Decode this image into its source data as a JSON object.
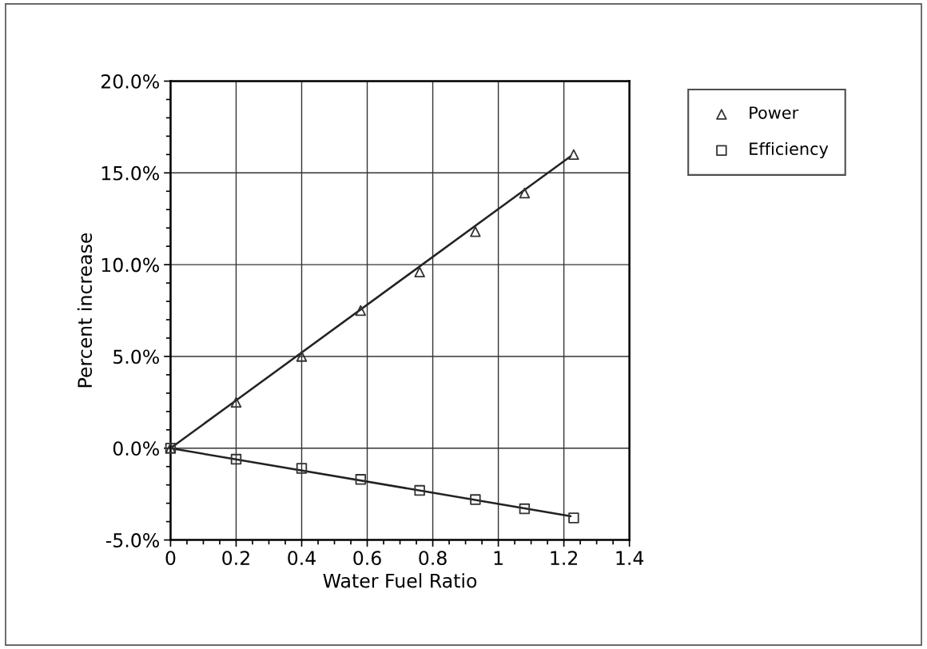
{
  "chart_data": {
    "type": "scatter",
    "xlabel": "Water Fuel Ratio",
    "ylabel": "Percent increase",
    "xlim": [
      0,
      1.4
    ],
    "xticks": [
      0,
      0.2,
      0.4,
      0.6,
      0.8,
      1,
      1.2,
      1.4
    ],
    "ylim": [
      -5,
      20
    ],
    "yticks": [
      {
        "value": -5,
        "label": "-5.0%"
      },
      {
        "value": 0,
        "label": "0.0%"
      },
      {
        "value": 5,
        "label": "5.0%"
      },
      {
        "value": 10,
        "label": "10.0%"
      },
      {
        "value": 15,
        "label": "15.0%"
      },
      {
        "value": 20,
        "label": "20.0%"
      }
    ],
    "grid": true,
    "legend": "top right",
    "series": [
      {
        "name": "Power",
        "color": "#333333",
        "marker": "triangle",
        "x": [
          0,
          0.2,
          0.4,
          0.58,
          0.76,
          0.93,
          1.08,
          1.23
        ],
        "values": [
          0,
          2.5,
          5.0,
          7.5,
          9.6,
          11.8,
          13.9,
          16.0
        ]
      },
      {
        "name": "Efficiency",
        "color": "#333333",
        "marker": "square",
        "x": [
          0,
          0.2,
          0.4,
          0.58,
          0.76,
          0.93,
          1.08,
          1.23
        ],
        "values": [
          0,
          -0.6,
          -1.1,
          -1.7,
          -2.3,
          -2.8,
          -3.3,
          -3.8
        ]
      },
      {
        "type": "line",
        "color": "#222222",
        "marker": "none",
        "x": [
          0,
          1.22
        ],
        "values": [
          0,
          15.9
        ]
      },
      {
        "type": "line",
        "color": "#222222",
        "marker": "none",
        "x": [
          0,
          1.22
        ],
        "values": [
          0,
          -3.7
        ]
      }
    ]
  }
}
